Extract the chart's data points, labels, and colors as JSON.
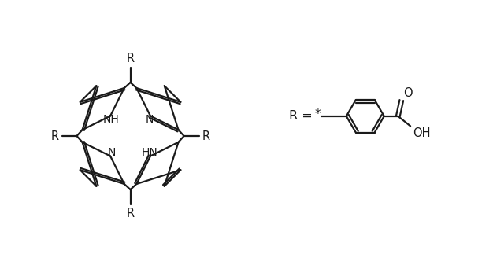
{
  "bg_color": "#ffffff",
  "line_color": "#1a1a1a",
  "line_width": 1.6,
  "font_size": 10.5,
  "fig_width": 6.4,
  "fig_height": 3.46,
  "dpi": 100,
  "xlim": [
    0,
    10
  ],
  "ylim": [
    0,
    5.4
  ]
}
